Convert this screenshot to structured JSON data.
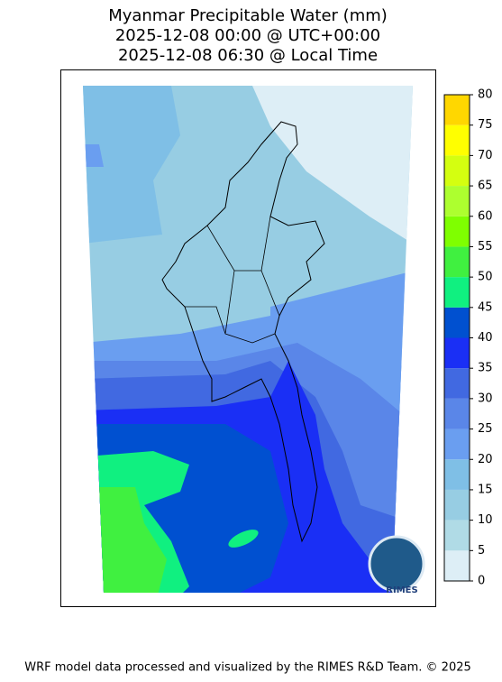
{
  "header": {
    "title_lines": [
      "Myanmar Precipitable Water (mm)",
      "2025-12-08 00:00 @ UTC+00:00",
      "2025-12-08 06:30 @ Local Time"
    ]
  },
  "colorbar": {
    "levels": [
      0,
      5,
      10,
      15,
      20,
      25,
      30,
      35,
      40,
      45,
      50,
      55,
      60,
      65,
      70,
      75,
      80
    ],
    "colors": [
      "#ddeef6",
      "#b0dbe6",
      "#97cde3",
      "#7fbfe6",
      "#6a9ef0",
      "#5a86e8",
      "#4169e1",
      "#1a2ff5",
      "#0050d0",
      "#10f080",
      "#40f040",
      "#7fff00",
      "#adff2f",
      "#d4ff10",
      "#ffff00",
      "#ffd700"
    ]
  },
  "logo": {
    "text": "RIMES"
  },
  "footer": "WRF model data processed and visualized by the RIMES R&D Team. © 2025"
}
